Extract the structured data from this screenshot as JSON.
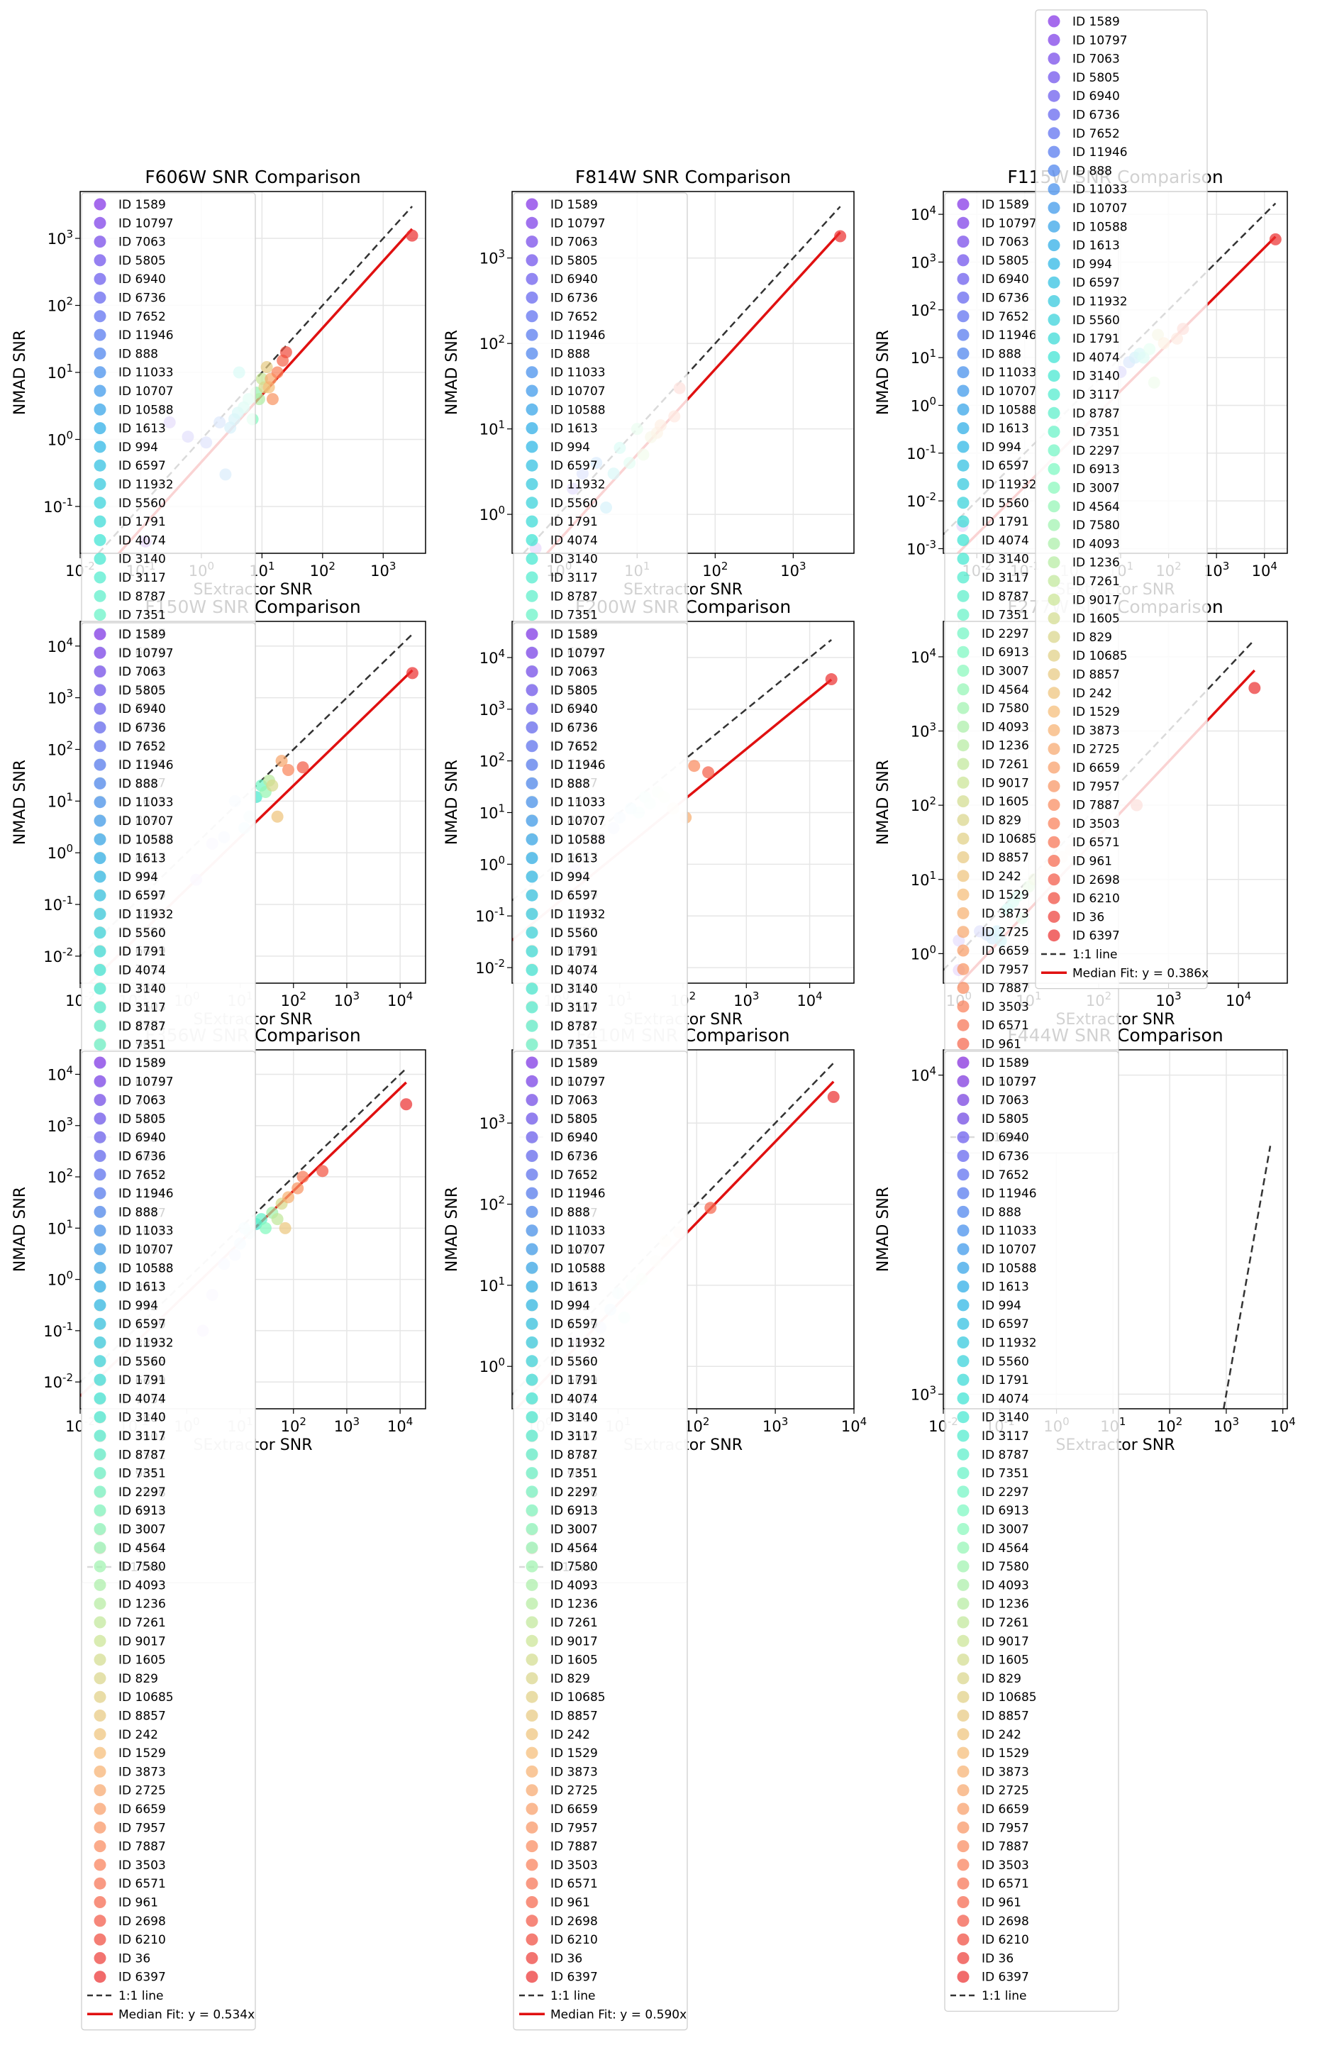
{
  "figure": {
    "xlabel": "SExtractor SNR",
    "ylabel": "NMAD SNR",
    "one_to_one_label": "1:1 line",
    "legend_ids": [
      "ID 1589",
      "ID 10797",
      "ID 7063",
      "ID 5805",
      "ID 6940",
      "ID 6736",
      "ID 7652",
      "ID 11946",
      "ID 888",
      "ID 11033",
      "ID 10707",
      "ID 10588",
      "ID 1613",
      "ID 994",
      "ID 6597",
      "ID 11932",
      "ID 5560",
      "ID 1791",
      "ID 4074",
      "ID 3140",
      "ID 3117",
      "ID 8787",
      "ID 7351",
      "ID 2297",
      "ID 6913",
      "ID 3007",
      "ID 4564",
      "ID 7580",
      "ID 4093",
      "ID 1236",
      "ID 7261",
      "ID 9017",
      "ID 1605",
      "ID 829",
      "ID 10685",
      "ID 8857",
      "ID 242",
      "ID 1529",
      "ID 3873",
      "ID 2725",
      "ID 6659",
      "ID 7957",
      "ID 7887",
      "ID 3503",
      "ID 6571",
      "ID 961",
      "ID 2698",
      "ID 6210",
      "ID 36",
      "ID 6397"
    ],
    "colors": {
      "fit_line": "#e01010",
      "one_to_one": "#333333",
      "grid": "#e6e6e6"
    }
  },
  "chart_data": [
    {
      "type": "scatter",
      "title": "F606W SNR Comparison",
      "xlabel": "SExtractor SNR",
      "ylabel": "NMAD SNR",
      "log_x": true,
      "log_y": true,
      "xlim": [
        0.01,
        5000
      ],
      "ylim": [
        0.02,
        5000
      ],
      "fit_label": "",
      "fit_slope": 0.46,
      "grid": true,
      "legend_placement": "upper left",
      "points": [
        [
          0.12,
          0.03
        ],
        [
          0.3,
          1.8
        ],
        [
          0.6,
          1.1
        ],
        [
          1.2,
          0.9
        ],
        [
          2,
          1.8
        ],
        [
          2.5,
          0.3
        ],
        [
          3,
          1.5
        ],
        [
          3.5,
          2
        ],
        [
          4,
          2.5
        ],
        [
          4.2,
          10
        ],
        [
          5,
          3
        ],
        [
          6,
          4
        ],
        [
          7,
          2
        ],
        [
          8,
          5
        ],
        [
          9,
          4
        ],
        [
          10,
          8
        ],
        [
          11,
          6
        ],
        [
          12,
          12
        ],
        [
          13,
          6
        ],
        [
          14,
          8
        ],
        [
          15,
          4
        ],
        [
          18,
          10
        ],
        [
          22,
          15
        ],
        [
          25,
          20
        ],
        [
          3000,
          1100
        ]
      ]
    },
    {
      "type": "scatter",
      "title": "F814W SNR Comparison",
      "xlabel": "SExtractor SNR",
      "ylabel": "NMAD SNR",
      "log_x": true,
      "log_y": true,
      "xlim": [
        0.25,
        6000
      ],
      "ylim": [
        0.35,
        6000
      ],
      "fit_label": "",
      "fit_slope": 0.5,
      "grid": true,
      "legend_placement": "upper left",
      "points": [
        [
          0.5,
          0.4
        ],
        [
          1.5,
          2
        ],
        [
          2,
          3
        ],
        [
          3,
          4
        ],
        [
          4,
          1.2
        ],
        [
          5,
          3
        ],
        [
          6,
          6
        ],
        [
          8,
          4
        ],
        [
          10,
          10
        ],
        [
          12,
          5
        ],
        [
          15,
          8
        ],
        [
          18,
          9
        ],
        [
          20,
          11
        ],
        [
          30,
          14
        ],
        [
          35,
          30
        ],
        [
          4000,
          1800
        ]
      ]
    },
    {
      "type": "scatter",
      "title": "F115W SNR Comparison",
      "xlabel": "SExtractor SNR",
      "ylabel": "NMAD SNR",
      "log_x": true,
      "log_y": true,
      "xlim": [
        0.002,
        30000
      ],
      "ylim": [
        0.0008,
        30000
      ],
      "fit_label": "",
      "fit_slope": 0.2,
      "grid": true,
      "legend_placement": "upper left",
      "points": [
        [
          0.005,
          0.003
        ],
        [
          10,
          5
        ],
        [
          15,
          8
        ],
        [
          20,
          10
        ],
        [
          25,
          12
        ],
        [
          30,
          10
        ],
        [
          40,
          15
        ],
        [
          50,
          3
        ],
        [
          60,
          30
        ],
        [
          80,
          20
        ],
        [
          150,
          25
        ],
        [
          200,
          40
        ],
        [
          17000,
          3000
        ]
      ]
    },
    {
      "type": "scatter",
      "title": "F150W SNR Comparison",
      "xlabel": "SExtractor SNR",
      "ylabel": "NMAD SNR",
      "log_x": true,
      "log_y": true,
      "xlim": [
        0.01,
        30000
      ],
      "ylim": [
        0.003,
        30000
      ],
      "fit_label": "",
      "fit_slope": 0.2,
      "grid": true,
      "legend_placement": "upper left",
      "points": [
        [
          1.5,
          0.3
        ],
        [
          3,
          1.5
        ],
        [
          5,
          2
        ],
        [
          8,
          10
        ],
        [
          12,
          3
        ],
        [
          15,
          5
        ],
        [
          20,
          12
        ],
        [
          25,
          20
        ],
        [
          30,
          15
        ],
        [
          35,
          25
        ],
        [
          40,
          20
        ],
        [
          50,
          5
        ],
        [
          60,
          60
        ],
        [
          80,
          40
        ],
        [
          150,
          45
        ],
        [
          17000,
          3000
        ]
      ]
    },
    {
      "type": "scatter",
      "title": "F200W SNR Comparison",
      "xlabel": "SExtractor SNR",
      "ylabel": "NMAD SNR",
      "log_x": true,
      "log_y": true,
      "xlim": [
        0.2,
        50000
      ],
      "ylim": [
        0.005,
        50000
      ],
      "fit_label": "",
      "fit_slope": 0.17,
      "grid": true,
      "legend_placement": "upper left",
      "points": [
        [
          2,
          0.8
        ],
        [
          5,
          3
        ],
        [
          8,
          5
        ],
        [
          10,
          8
        ],
        [
          15,
          12
        ],
        [
          20,
          10
        ],
        [
          25,
          20
        ],
        [
          30,
          15
        ],
        [
          40,
          25
        ],
        [
          50,
          20
        ],
        [
          70,
          12
        ],
        [
          110,
          8
        ],
        [
          150,
          80
        ],
        [
          250,
          60
        ],
        [
          22000,
          3800
        ]
      ]
    },
    {
      "type": "scatter",
      "title": "F277W SNR Comparison",
      "xlabel": "SExtractor SNR",
      "ylabel": "NMAD SNR",
      "log_x": true,
      "log_y": true,
      "xlim": [
        0.6,
        50000
      ],
      "ylim": [
        0.4,
        30000
      ],
      "fit_label": "Median Fit: y = 0.386x",
      "fit_slope": 0.386,
      "grid": true,
      "legend_placement": "upper left",
      "points": [
        [
          1,
          0.6
        ],
        [
          1,
          1.5
        ],
        [
          2,
          2
        ],
        [
          2.5,
          1.8
        ],
        [
          3,
          1.6
        ],
        [
          3.5,
          2
        ],
        [
          4,
          1.5
        ],
        [
          5,
          4
        ],
        [
          6,
          5
        ],
        [
          7,
          6
        ],
        [
          8,
          3
        ],
        [
          10,
          8
        ],
        [
          12,
          10
        ],
        [
          15,
          12
        ],
        [
          20,
          15
        ],
        [
          30,
          20
        ],
        [
          40,
          25
        ],
        [
          60,
          10
        ],
        [
          350,
          100
        ],
        [
          17000,
          3800
        ]
      ]
    },
    {
      "type": "scatter",
      "title": "F356W SNR Comparison",
      "xlabel": "SExtractor SNR",
      "ylabel": "NMAD SNR",
      "log_x": true,
      "log_y": true,
      "xlim": [
        0.01,
        30000
      ],
      "ylim": [
        0.003,
        30000
      ],
      "fit_label": "Median Fit: y = 0.534x",
      "fit_slope": 0.534,
      "grid": true,
      "legend_placement": "upper left",
      "points": [
        [
          2,
          0.1
        ],
        [
          3,
          0.5
        ],
        [
          5,
          2
        ],
        [
          8,
          3
        ],
        [
          10,
          5
        ],
        [
          12,
          10
        ],
        [
          15,
          8
        ],
        [
          20,
          12
        ],
        [
          25,
          15
        ],
        [
          30,
          10
        ],
        [
          40,
          20
        ],
        [
          50,
          15
        ],
        [
          60,
          30
        ],
        [
          70,
          10
        ],
        [
          80,
          40
        ],
        [
          120,
          60
        ],
        [
          150,
          100
        ],
        [
          350,
          130
        ],
        [
          13000,
          2600
        ]
      ]
    },
    {
      "type": "scatter",
      "title": "F410M SNR Comparison",
      "xlabel": "SExtractor SNR",
      "ylabel": "NMAD SNR",
      "log_x": true,
      "log_y": true,
      "xlim": [
        0.45,
        10000
      ],
      "ylim": [
        0.3,
        8000
      ],
      "fit_label": "Median Fit: y = 0.590x",
      "fit_slope": 0.59,
      "grid": true,
      "legend_placement": "upper left",
      "points": [
        [
          3,
          2
        ],
        [
          5,
          1.5
        ],
        [
          6,
          3
        ],
        [
          8,
          5
        ],
        [
          10,
          8
        ],
        [
          12,
          4
        ],
        [
          15,
          10
        ],
        [
          20,
          12
        ],
        [
          30,
          20
        ],
        [
          40,
          35
        ],
        [
          60,
          45
        ],
        [
          150,
          90
        ],
        [
          5500,
          2100
        ]
      ]
    },
    {
      "type": "scatter",
      "title": "F444W SNR Comparison",
      "xlabel": "SExtractor SNR",
      "ylabel": "NMAD SNR",
      "log_x": true,
      "log_y": true,
      "xlim": [
        0.01,
        12000
      ],
      "ylim": [
        900,
        12000
      ],
      "fit_label": "",
      "fit_slope": null,
      "grid": true,
      "legend_placement": "upper left",
      "points": []
    }
  ]
}
